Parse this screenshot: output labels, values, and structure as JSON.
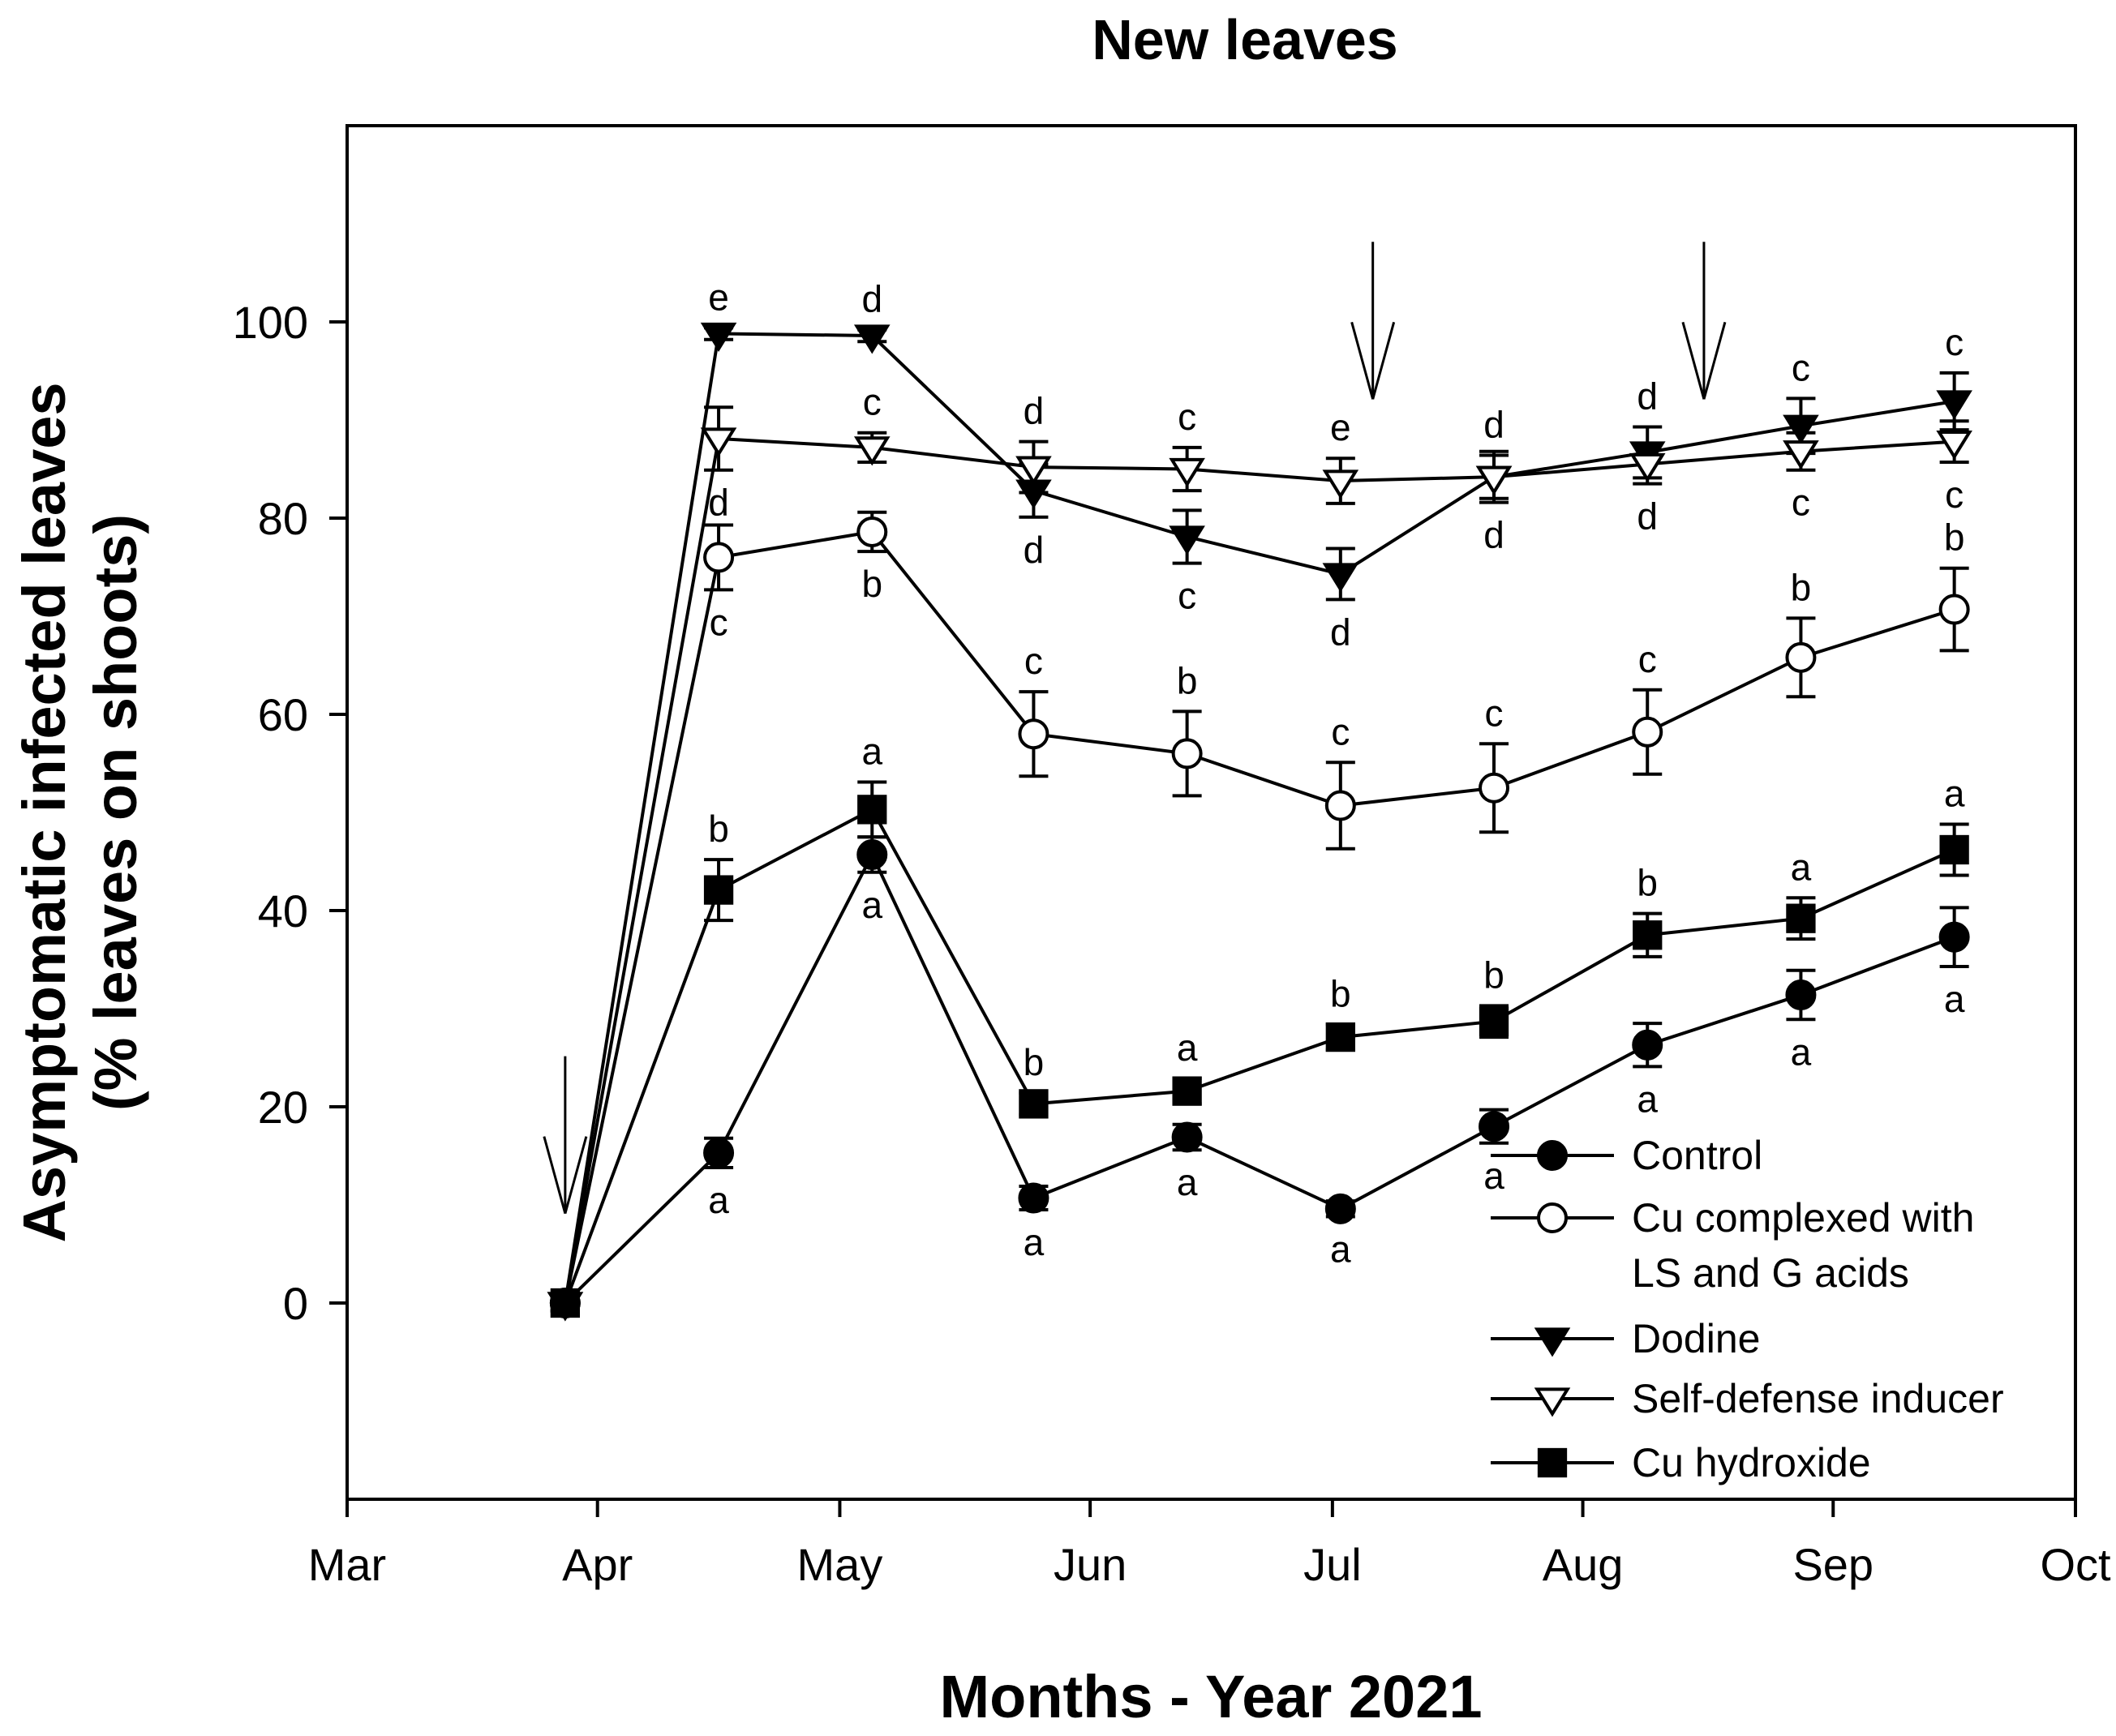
{
  "chart_data": {
    "type": "line",
    "title": "New leaves",
    "xlabel": "Months - Year 2021",
    "ylabel_line1": "Asymptomatic infected leaves",
    "ylabel_line2": "(% leaves on shoots)",
    "xlim_days": [
      0,
      214
    ],
    "ylim": [
      -20,
      120
    ],
    "month_ticks": [
      {
        "label": "Mar",
        "day": 0
      },
      {
        "label": "Apr",
        "day": 31
      },
      {
        "label": "May",
        "day": 61
      },
      {
        "label": "Jun",
        "day": 92
      },
      {
        "label": "Jul",
        "day": 122
      },
      {
        "label": "Aug",
        "day": 153
      },
      {
        "label": "Sep",
        "day": 184
      },
      {
        "label": "Oct",
        "day": 214
      }
    ],
    "y_ticks": [
      0,
      20,
      40,
      60,
      80,
      100
    ],
    "x_days": [
      27,
      46,
      65,
      85,
      104,
      123,
      142,
      161,
      180,
      199
    ],
    "treatment_arrows": [
      {
        "day": 27,
        "value": 24
      },
      {
        "day": 127,
        "value": 107
      },
      {
        "day": 168,
        "value": 107
      }
    ],
    "series": [
      {
        "name": "Control",
        "marker": "circle-filled",
        "values": [
          0,
          15.3,
          45.7,
          10.7,
          16.9,
          9.6,
          18,
          26.3,
          31.4,
          37.3
        ],
        "errors": [
          0.8,
          1.5,
          1.8,
          1.2,
          1.3,
          0.8,
          1.7,
          2.2,
          2.5,
          3
        ],
        "letters": [
          "",
          "a",
          "a",
          "a",
          "a",
          "a",
          "a",
          "a",
          "a",
          "a"
        ],
        "letter_pos": [
          "below",
          "below",
          "below",
          "below",
          "below",
          "below",
          "below",
          "below",
          "below",
          "below"
        ]
      },
      {
        "name": "Cu complexed with LS and G acids",
        "marker": "circle-open",
        "values": [
          0,
          76,
          78.6,
          58,
          56,
          50.7,
          52.5,
          58.2,
          65.8,
          70.7
        ],
        "errors": [
          0.8,
          3.3,
          2,
          4.3,
          4.3,
          4.4,
          4.5,
          4.3,
          4,
          4.2
        ],
        "letters": [
          "",
          "c",
          "b",
          "c",
          "b",
          "c",
          "c",
          "c",
          "b",
          "b"
        ],
        "letter_pos": [
          "below",
          "below",
          "below",
          "above",
          "above",
          "above",
          "above",
          "above",
          "above",
          "above"
        ]
      },
      {
        "name": "Dodine",
        "marker": "triangle-down-filled",
        "values": [
          0,
          98.8,
          98.6,
          82.8,
          78.1,
          74.3,
          84.2,
          86.7,
          89.4,
          91.9
        ],
        "errors": [
          0.8,
          0.6,
          0.6,
          2.7,
          2.7,
          2.6,
          2.6,
          2.6,
          2.8,
          2.9
        ],
        "letters": [
          "",
          "e",
          "d",
          "d",
          "c",
          "d",
          "d",
          "d",
          "c",
          "c"
        ],
        "letter_pos": [
          "above",
          "above",
          "above",
          "below",
          "below",
          "below",
          "below",
          "above",
          "above",
          "above"
        ]
      },
      {
        "name": "Self-defense inducer",
        "marker": "triangle-down-open",
        "values": [
          0,
          88.1,
          87.2,
          85.2,
          85,
          83.8,
          84.2,
          85.5,
          86.8,
          87.8
        ],
        "errors": [
          0.8,
          3.2,
          1.5,
          2.6,
          2.2,
          2.3,
          2.2,
          2,
          1.9,
          2.1
        ],
        "letters": [
          "",
          "d",
          "c",
          "d",
          "c",
          "e",
          "d",
          "d",
          "c",
          "c"
        ],
        "letter_pos": [
          "below",
          "below",
          "above",
          "above",
          "above",
          "above",
          "above",
          "below",
          "below",
          "below"
        ]
      },
      {
        "name": "Cu hydroxide",
        "marker": "square-filled",
        "values": [
          0,
          42.1,
          50.3,
          20.3,
          21.6,
          27.1,
          28.7,
          37.5,
          39.2,
          46.2
        ],
        "errors": [
          0.8,
          3.1,
          2.8,
          1.1,
          1.3,
          1.3,
          1.6,
          2.2,
          2.1,
          2.6
        ],
        "letters": [
          "",
          "b",
          "a",
          "b",
          "a",
          "b",
          "b",
          "b",
          "a",
          "a"
        ],
        "letter_pos": [
          "above",
          "above",
          "above",
          "above",
          "above",
          "above",
          "above",
          "above",
          "above",
          "above"
        ]
      }
    ],
    "legend": {
      "placement": "bottom-right",
      "entries": [
        {
          "marker": "circle-filled",
          "lines": [
            "Control"
          ]
        },
        {
          "marker": "circle-open",
          "lines": [
            "Cu complexed with",
            "LS and G acids"
          ]
        },
        {
          "marker": "triangle-down-filled",
          "lines": [
            "Dodine"
          ]
        },
        {
          "marker": "triangle-down-open",
          "lines": [
            "Self-defense inducer"
          ]
        },
        {
          "marker": "square-filled",
          "lines": [
            "Cu hydroxide"
          ]
        }
      ]
    }
  }
}
